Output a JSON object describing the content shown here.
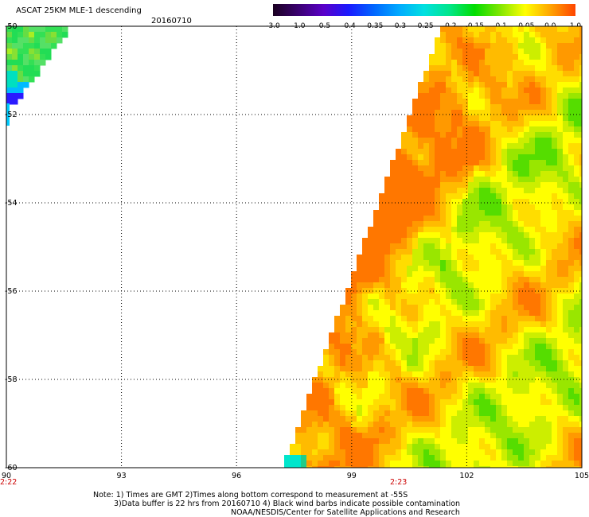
{
  "header": {
    "title": "ASCAT 25KM MLE-1 descending",
    "date": "20160710"
  },
  "colorbar": {
    "labels": [
      "-3.0",
      "-1.0",
      "-0.5",
      "-0.4",
      "-0.35",
      "-0.3",
      "-0.25",
      "-0.2",
      "-0.15",
      "-0.1",
      "-0.05",
      "0.0",
      "1.0"
    ],
    "colors": [
      "#1a0020",
      "#3a0070",
      "#5a00c8",
      "#1a1aff",
      "#0066ff",
      "#00aaff",
      "#00e0e0",
      "#00e68a",
      "#00dd00",
      "#80e600",
      "#ffff00",
      "#ffa500",
      "#ff4400"
    ]
  },
  "map": {
    "x_axis": {
      "range": [
        90,
        105
      ],
      "ticks": [
        "90",
        "93",
        "96",
        "99",
        "102",
        "105"
      ]
    },
    "y_axis": {
      "range": [
        -60,
        -50
      ],
      "ticks": [
        "-50",
        "-52",
        "-54",
        "-56",
        "-58",
        "-60"
      ]
    },
    "times": [
      "2:22",
      "2:23"
    ]
  },
  "notes": {
    "line1": "Note: 1) Times are GMT 2)Times along bottom correspond to measurement at -55S",
    "line2": "3)Data buffer is 22 hrs from 20160710 4) Black wind barbs indicate possible contamination",
    "line3": "NOAA/NESDIS/Center for Satellite Applications and Research"
  }
}
